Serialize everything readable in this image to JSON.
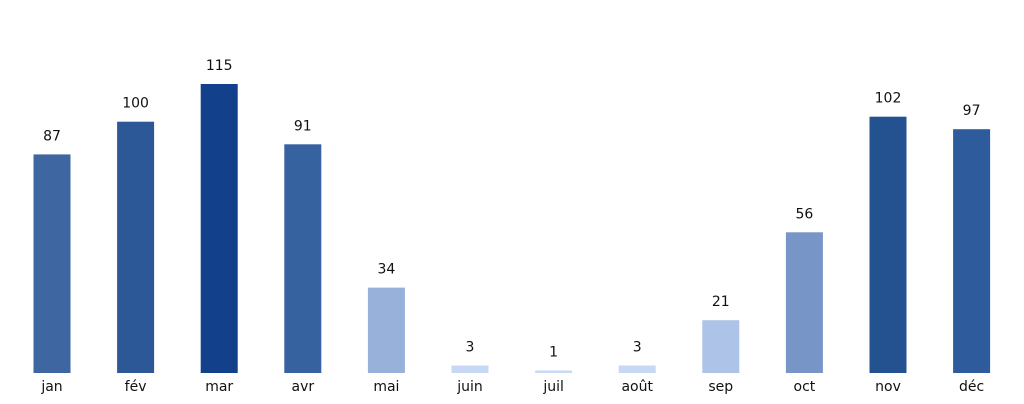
{
  "chart_data": {
    "type": "bar",
    "categories": [
      "jan",
      "fév",
      "mar",
      "avr",
      "mai",
      "juin",
      "juil",
      "août",
      "sep",
      "oct",
      "nov",
      "déc"
    ],
    "values": [
      87,
      100,
      115,
      91,
      34,
      3,
      1,
      3,
      21,
      56,
      102,
      97
    ],
    "ylim": [
      0,
      115
    ],
    "grid": false,
    "data_labels": true,
    "colors": [
      "#3e67a2",
      "#2d5898",
      "#12408a",
      "#3762a0",
      "#97b1da",
      "#c6d8f4",
      "#c9daf5",
      "#c6d8f4",
      "#aec3e8",
      "#7795c6",
      "#24518f",
      "#2e5b9b"
    ]
  }
}
